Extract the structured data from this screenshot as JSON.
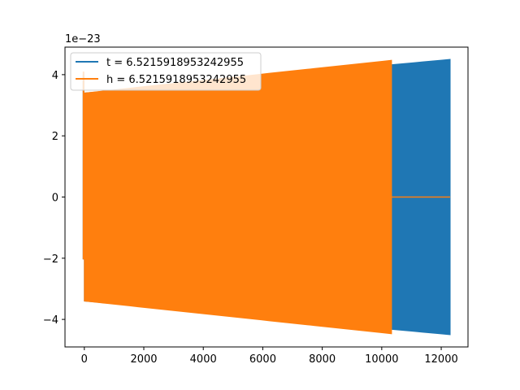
{
  "chart_data": {
    "type": "line",
    "title": "",
    "xlabel": "",
    "ylabel": "",
    "y_offset_label": "1e−23",
    "xlim": [
      -650,
      12900
    ],
    "ylim": [
      -4.9,
      4.9
    ],
    "x_ticks": [
      0,
      2000,
      4000,
      6000,
      8000,
      10000,
      12000
    ],
    "x_tick_labels": [
      "0",
      "2000",
      "4000",
      "6000",
      "8000",
      "10000",
      "12000"
    ],
    "y_ticks": [
      4,
      2,
      0,
      -2,
      -4
    ],
    "y_tick_labels": [
      "4",
      "2",
      "0",
      "−2",
      "−4"
    ],
    "legend_position": "top-left",
    "grid": false,
    "series": [
      {
        "name": "t = 6.5215918953242955",
        "color": "#1f77b4",
        "x_start": 0,
        "x_end": 12300,
        "envelope_start": 3.4,
        "envelope_end": 4.5,
        "initial_spike": 4.0
      },
      {
        "name": "h = 6.5215918953242955",
        "color": "#ff7f0e",
        "x_start": 0,
        "x_end": 10330,
        "envelope_start": 3.4,
        "envelope_end": 4.47,
        "initial_spike": 4.1,
        "flat_after_x": 10330,
        "flat_until_x": 12300,
        "flat_value": 0
      }
    ]
  }
}
